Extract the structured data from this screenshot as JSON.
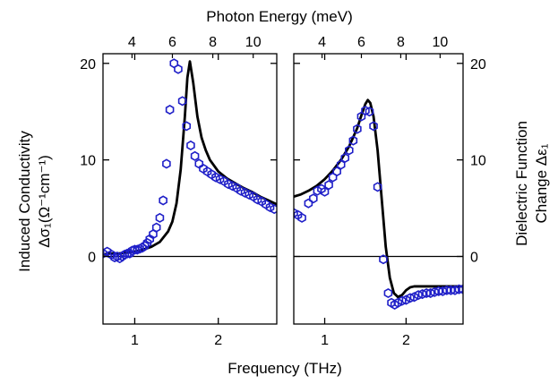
{
  "chart_data": [
    {
      "type": "scatter",
      "panel": "left",
      "x_axis": {
        "label": "",
        "range": [
          0.62,
          2.7
        ],
        "ticks": [
          1,
          2
        ],
        "tick_labels": [
          "1",
          "2"
        ]
      },
      "top_axis": {
        "label": "Photon Energy (meV)",
        "ticks": [
          4,
          6,
          8,
          10
        ],
        "tick_labels": [
          "4",
          "6",
          "8",
          "10"
        ],
        "unit_conversion_meV_per_THz": 4.1357
      },
      "y_axis": {
        "label_line1": "Induced Conductivity",
        "label_line2": "Δσ₁(Ω⁻¹cm⁻¹)",
        "range": [
          -7,
          21
        ],
        "ticks": [
          0,
          10,
          20
        ],
        "tick_labels": [
          "0",
          "10",
          "20"
        ]
      },
      "zero_line": true,
      "series": [
        {
          "kind": "markers",
          "marker": "hexagon-open",
          "color": "#1f1fc8",
          "x": [
            0.62,
            0.67,
            0.72,
            0.76,
            0.79,
            0.82,
            0.85,
            0.88,
            0.91,
            0.94,
            0.97,
            1.0,
            1.03,
            1.06,
            1.09,
            1.12,
            1.15,
            1.18,
            1.22,
            1.26,
            1.3,
            1.34,
            1.38,
            1.42,
            1.47,
            1.52,
            1.57,
            1.62,
            1.67,
            1.72,
            1.77,
            1.82,
            1.87,
            1.92,
            1.97,
            2.02,
            2.07,
            2.12,
            2.17,
            2.22,
            2.27,
            2.32,
            2.37,
            2.42,
            2.47,
            2.52,
            2.57,
            2.62,
            2.67
          ],
          "y": [
            0.3,
            0.5,
            0.2,
            -0.1,
            0.0,
            -0.2,
            0.0,
            0.2,
            0.3,
            0.3,
            0.6,
            0.7,
            0.7,
            0.8,
            0.9,
            1.1,
            1.4,
            1.8,
            2.3,
            3.0,
            4.0,
            5.8,
            9.6,
            15.2,
            20.0,
            19.4,
            16.1,
            13.5,
            11.5,
            10.4,
            9.6,
            9.1,
            8.8,
            8.5,
            8.2,
            8.0,
            7.8,
            7.5,
            7.3,
            7.1,
            6.8,
            6.6,
            6.4,
            6.2,
            5.9,
            5.7,
            5.4,
            5.1,
            4.9
          ]
        },
        {
          "kind": "line",
          "color": "#000000",
          "x": [
            0.62,
            0.7,
            0.8,
            0.9,
            1.0,
            1.1,
            1.2,
            1.3,
            1.4,
            1.45,
            1.5,
            1.55,
            1.6,
            1.63,
            1.66,
            1.7,
            1.75,
            1.8,
            1.85,
            1.9,
            2.0,
            2.1,
            2.2,
            2.3,
            2.4,
            2.5,
            2.6,
            2.7
          ],
          "y": [
            0.2,
            0.3,
            0.3,
            0.4,
            0.5,
            0.7,
            1.0,
            1.5,
            2.6,
            3.6,
            5.5,
            9.0,
            14.5,
            18.5,
            20.2,
            18.0,
            14.5,
            12.3,
            11.0,
            10.0,
            8.8,
            8.1,
            7.6,
            7.1,
            6.7,
            6.2,
            5.8,
            5.4
          ]
        }
      ]
    },
    {
      "type": "scatter",
      "panel": "right",
      "x_axis": {
        "label": "",
        "range": [
          0.62,
          2.7
        ],
        "ticks": [
          1,
          2
        ],
        "tick_labels": [
          "1",
          "2"
        ]
      },
      "top_axis": {
        "label": "",
        "ticks": [
          4,
          6,
          8,
          10
        ],
        "tick_labels": [
          "4",
          "6",
          "8",
          "10"
        ],
        "unit_conversion_meV_per_THz": 4.1357
      },
      "y_axis": {
        "label_line1": "Dielectric Function",
        "label_line2": "Change Δε₁",
        "range": [
          -7,
          21
        ],
        "ticks": [
          0,
          10,
          20
        ],
        "tick_labels": [
          "0",
          "10",
          "20"
        ],
        "position": "right"
      },
      "zero_line": true,
      "series": [
        {
          "kind": "markers",
          "marker": "hexagon-open",
          "color": "#1f1fc8",
          "x": [
            0.62,
            0.67,
            0.72,
            0.8,
            0.86,
            0.91,
            0.96,
            1.0,
            1.05,
            1.1,
            1.15,
            1.2,
            1.25,
            1.3,
            1.35,
            1.4,
            1.45,
            1.5,
            1.55,
            1.6,
            1.65,
            1.72,
            1.78,
            1.82,
            1.86,
            1.9,
            1.95,
            2.0,
            2.05,
            2.1,
            2.15,
            2.2,
            2.25,
            2.3,
            2.35,
            2.4,
            2.45,
            2.5,
            2.55,
            2.6,
            2.65,
            2.7
          ],
          "y": [
            4.5,
            4.3,
            4.0,
            5.5,
            6.0,
            6.8,
            7.0,
            6.7,
            7.4,
            8.2,
            8.8,
            9.5,
            10.2,
            11.0,
            12.0,
            13.2,
            14.5,
            15.1,
            15.0,
            13.5,
            7.2,
            -0.3,
            -3.8,
            -4.8,
            -5.0,
            -4.8,
            -4.6,
            -4.5,
            -4.3,
            -4.2,
            -4.0,
            -3.9,
            -3.8,
            -3.8,
            -3.7,
            -3.6,
            -3.6,
            -3.5,
            -3.5,
            -3.5,
            -3.4,
            -3.4
          ]
        },
        {
          "kind": "line",
          "color": "#000000",
          "x": [
            0.62,
            0.7,
            0.8,
            0.9,
            1.0,
            1.1,
            1.2,
            1.3,
            1.4,
            1.45,
            1.5,
            1.53,
            1.56,
            1.6,
            1.65,
            1.7,
            1.75,
            1.8,
            1.85,
            1.9,
            1.95,
            2.0,
            2.05,
            2.1,
            2.2,
            2.3,
            2.4,
            2.5,
            2.6,
            2.7
          ],
          "y": [
            6.2,
            6.4,
            6.8,
            7.3,
            8.0,
            8.9,
            10.0,
            11.4,
            13.3,
            14.6,
            15.8,
            16.2,
            15.9,
            14.5,
            11.0,
            6.0,
            1.0,
            -2.2,
            -3.8,
            -4.2,
            -4.0,
            -3.5,
            -3.2,
            -3.1,
            -3.1,
            -3.1,
            -3.1,
            -3.1,
            -3.1,
            -3.1
          ]
        }
      ]
    }
  ],
  "shared_x_label": "Frequency (THz)"
}
